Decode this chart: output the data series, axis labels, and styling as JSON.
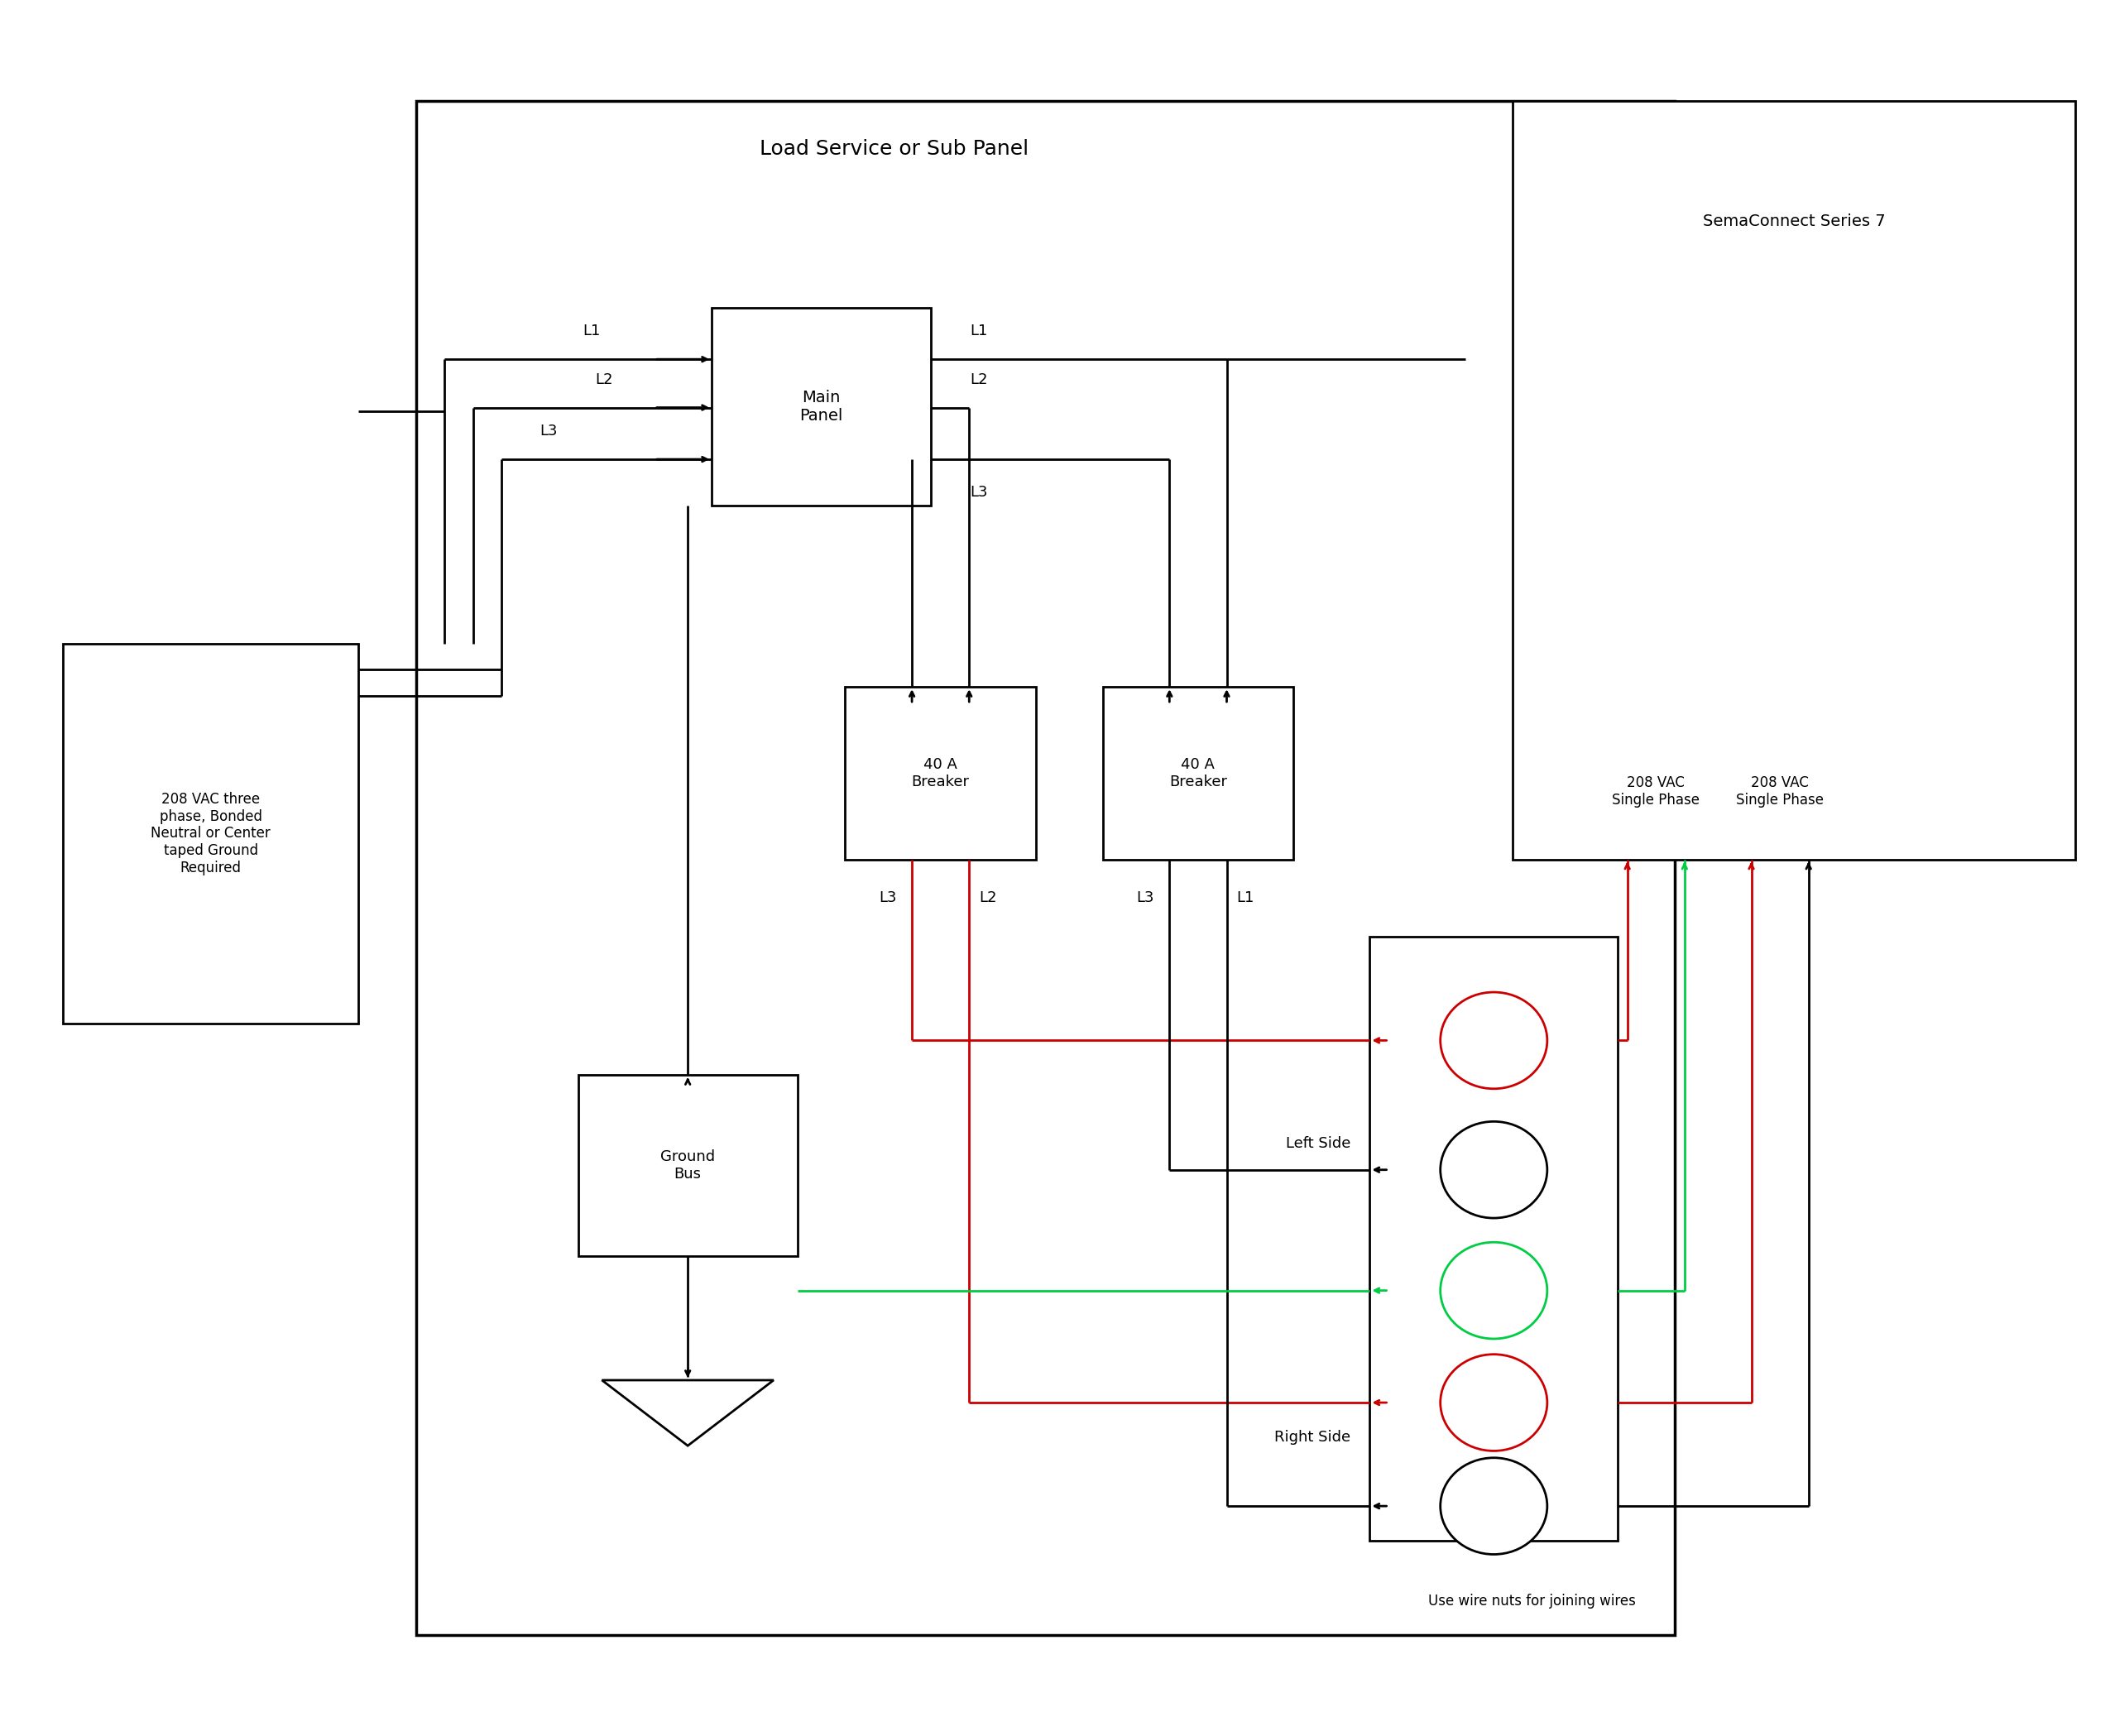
{
  "bg_color": "#ffffff",
  "lc": "#000000",
  "rc": "#cc0000",
  "gc": "#00cc44",
  "lw": 2.0,
  "fig_w": 25.5,
  "fig_h": 20.98,
  "texts": {
    "load_panel": "Load Service or Sub Panel",
    "sema": "SemaConnect Series 7",
    "main_panel": "Main\nPanel",
    "source": "208 VAC three\nphase, Bonded\nNeutral or Center\ntaped Ground\nRequired",
    "breaker1": "40 A\nBreaker",
    "breaker2": "40 A\nBreaker",
    "ground_bus": "Ground\nBus",
    "left_side": "Left Side",
    "right_side": "Right Side",
    "vac1": "208 VAC\nSingle Phase",
    "vac2": "208 VAC\nSingle Phase",
    "wire_nuts": "Use wire nuts for joining wires",
    "L1": "L1",
    "L2": "L2",
    "L3": "L3"
  },
  "fs_title": 18,
  "fs_label": 14,
  "fs_small": 13
}
